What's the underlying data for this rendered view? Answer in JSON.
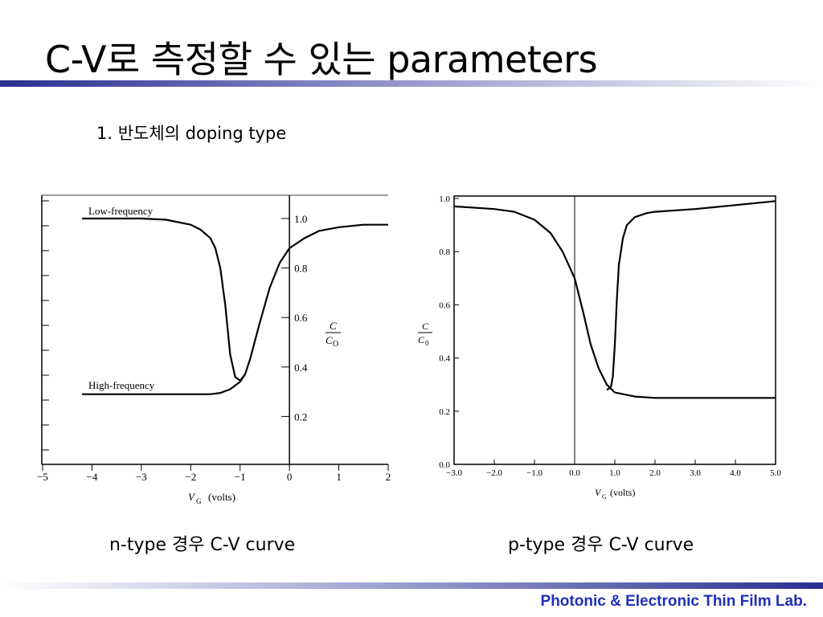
{
  "slide": {
    "title": "C-V로 측정할 수 있는 parameters",
    "subtitle": "1. 반도체의 doping type",
    "caption_left": "n-type 경우 C-V curve",
    "caption_right": "p-type 경우 C-V curve",
    "footer": "Photonic & Electronic Thin Film Lab.",
    "colors": {
      "accent": "#1f2fb8",
      "bar_dark": "#2a2f8f",
      "bar_light": "#ffffff",
      "footer_text": "#1f2fb8"
    }
  },
  "chart_data": [
    {
      "type": "line",
      "xlim": [
        -5,
        2
      ],
      "ylim": [
        0,
        1.1
      ],
      "xticks": [
        -5,
        -4,
        -3,
        -2,
        -1,
        0,
        1,
        2
      ],
      "xtick_labels": [
        "−5",
        "−4",
        "−3",
        "−2",
        "−1",
        "0",
        "1",
        "2"
      ],
      "yticks": [
        0.2,
        0.4,
        0.6,
        0.8,
        1.0
      ],
      "ytick_labels": [
        "0.2",
        "0.4",
        "0.6",
        "0.8",
        "1.0"
      ],
      "xlabel_main": "V",
      "xlabel_sub": "G",
      "xlabel_unit": "(volts)",
      "ylabel_num": "C",
      "ylabel_den": "C",
      "ylabel_den_sub": "O",
      "series": [
        {
          "name": "Low-frequency",
          "x": [
            -4.2,
            -3.0,
            -2.5,
            -2.0,
            -1.8,
            -1.6,
            -1.5,
            -1.4,
            -1.3,
            -1.2,
            -1.1,
            -1.0,
            -0.9,
            -0.8,
            -0.6,
            -0.4,
            -0.2,
            0.0,
            0.3,
            0.6,
            1.0,
            1.5,
            2.0
          ],
          "y": [
            1.0,
            1.0,
            0.995,
            0.975,
            0.955,
            0.92,
            0.88,
            0.8,
            0.65,
            0.45,
            0.36,
            0.345,
            0.37,
            0.43,
            0.58,
            0.72,
            0.82,
            0.88,
            0.92,
            0.95,
            0.965,
            0.975,
            0.975
          ]
        },
        {
          "name": "High-frequency",
          "x": [
            -4.2,
            -2.0,
            -1.6,
            -1.4,
            -1.2,
            -1.0,
            -0.9
          ],
          "y": [
            0.29,
            0.29,
            0.29,
            0.295,
            0.31,
            0.34,
            0.37
          ]
        }
      ],
      "annotations": [
        "Low-frequency",
        "High-frequency"
      ]
    },
    {
      "type": "line",
      "xlim": [
        -3,
        5
      ],
      "ylim": [
        0,
        1.0
      ],
      "xticks": [
        -3,
        -2,
        -1,
        0,
        1,
        2,
        3,
        4,
        5
      ],
      "xtick_labels": [
        "−3.0",
        "−2.0",
        "−1.0",
        "0.0",
        "1.0",
        "2.0",
        "3.0",
        "4.0",
        "5.0"
      ],
      "yticks": [
        0.0,
        0.2,
        0.4,
        0.6,
        0.8,
        1.0
      ],
      "ytick_labels": [
        "0.0",
        "0.2",
        "0.4",
        "0.6",
        "0.8",
        "1.0"
      ],
      "xlabel_main": "V",
      "xlabel_sub": "G",
      "xlabel_unit": "(volts)",
      "ylabel_num": "C",
      "ylabel_den": "C",
      "ylabel_den_sub": "0",
      "series": [
        {
          "x": [
            -3.0,
            -2.0,
            -1.5,
            -1.0,
            -0.6,
            -0.3,
            0.0,
            0.2,
            0.4,
            0.6,
            0.8,
            1.0,
            1.5,
            2.0,
            3.0,
            4.0,
            5.0
          ],
          "y": [
            0.97,
            0.96,
            0.95,
            0.92,
            0.87,
            0.8,
            0.7,
            0.58,
            0.45,
            0.36,
            0.3,
            0.27,
            0.255,
            0.25,
            0.25,
            0.25,
            0.25
          ]
        },
        {
          "x": [
            0.8,
            0.9,
            0.95,
            1.0,
            1.05,
            1.1,
            1.2,
            1.3,
            1.5,
            1.8,
            2.0,
            3.0,
            4.0,
            5.0
          ],
          "y": [
            0.28,
            0.29,
            0.33,
            0.45,
            0.62,
            0.75,
            0.85,
            0.9,
            0.93,
            0.945,
            0.95,
            0.96,
            0.975,
            0.99
          ]
        }
      ]
    }
  ]
}
